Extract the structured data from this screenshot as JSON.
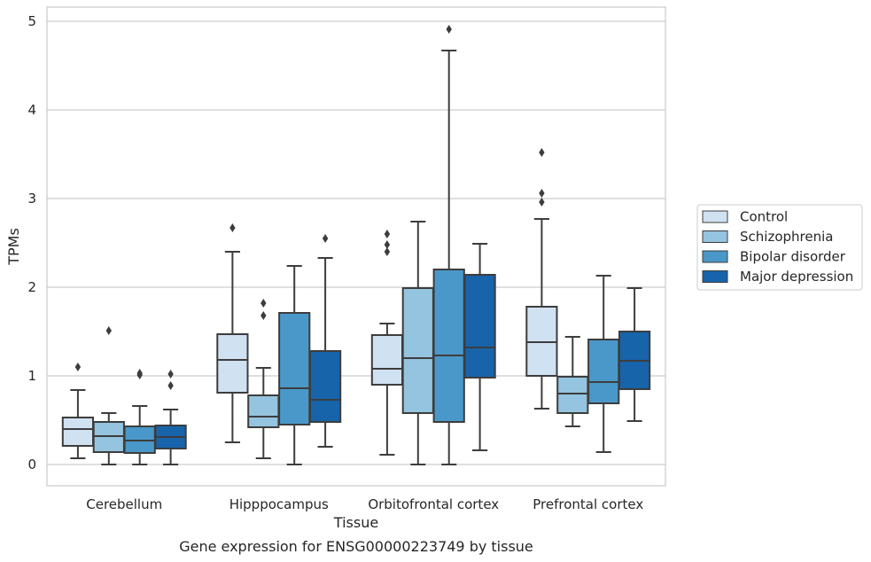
{
  "chart_data": {
    "type": "box",
    "title": "",
    "caption": "Gene expression for ENSG00000223749 by tissue",
    "xlabel": "Tissue",
    "ylabel": "TPMs",
    "ylim": [
      -0.24,
      5.16
    ],
    "yticks": [
      0,
      1,
      2,
      3,
      4,
      5
    ],
    "grid": true,
    "legend_position": "right",
    "categories": [
      "Cerebellum",
      "Hipppocampus",
      "Orbitofrontal cortex",
      "Prefrontal cortex"
    ],
    "series": [
      {
        "name": "Control",
        "color": "#d0e1f2",
        "boxes": [
          {
            "whislo": 0.07,
            "q1": 0.21,
            "med": 0.4,
            "q3": 0.53,
            "whishi": 0.84,
            "fliers": [
              1.1
            ]
          },
          {
            "whislo": 0.25,
            "q1": 0.81,
            "med": 1.18,
            "q3": 1.47,
            "whishi": 2.4,
            "fliers": [
              2.67
            ]
          },
          {
            "whislo": 0.11,
            "q1": 0.9,
            "med": 1.08,
            "q3": 1.46,
            "whishi": 1.59,
            "fliers": [
              2.4,
              2.48,
              2.6
            ]
          },
          {
            "whislo": 0.63,
            "q1": 1.0,
            "med": 1.38,
            "q3": 1.78,
            "whishi": 2.77,
            "fliers": [
              2.96,
              3.06,
              3.52
            ]
          }
        ]
      },
      {
        "name": "Schizophrenia",
        "color": "#94c4df",
        "boxes": [
          {
            "whislo": 0.0,
            "q1": 0.14,
            "med": 0.32,
            "q3": 0.48,
            "whishi": 0.58,
            "fliers": [
              1.51
            ]
          },
          {
            "whislo": 0.07,
            "q1": 0.42,
            "med": 0.54,
            "q3": 0.78,
            "whishi": 1.09,
            "fliers": [
              1.68,
              1.82
            ]
          },
          {
            "whislo": 0.0,
            "q1": 0.58,
            "med": 1.2,
            "q3": 1.99,
            "whishi": 2.74,
            "fliers": []
          },
          {
            "whislo": 0.43,
            "q1": 0.58,
            "med": 0.8,
            "q3": 0.99,
            "whishi": 1.44,
            "fliers": []
          }
        ]
      },
      {
        "name": "Bipolar disorder",
        "color": "#4a98c9",
        "boxes": [
          {
            "whislo": 0.0,
            "q1": 0.13,
            "med": 0.27,
            "q3": 0.43,
            "whishi": 0.66,
            "fliers": [
              1.01,
              1.03
            ]
          },
          {
            "whislo": 0.0,
            "q1": 0.45,
            "med": 0.86,
            "q3": 1.71,
            "whishi": 2.24,
            "fliers": []
          },
          {
            "whislo": 0.0,
            "q1": 0.48,
            "med": 1.23,
            "q3": 2.2,
            "whishi": 4.67,
            "fliers": [
              4.91
            ]
          },
          {
            "whislo": 0.14,
            "q1": 0.69,
            "med": 0.93,
            "q3": 1.41,
            "whishi": 2.13,
            "fliers": []
          }
        ]
      },
      {
        "name": "Major depression",
        "color": "#1764ab",
        "boxes": [
          {
            "whislo": 0.0,
            "q1": 0.18,
            "med": 0.31,
            "q3": 0.44,
            "whishi": 0.62,
            "fliers": [
              0.89,
              1.02
            ]
          },
          {
            "whislo": 0.2,
            "q1": 0.48,
            "med": 0.73,
            "q3": 1.28,
            "whishi": 2.33,
            "fliers": [
              2.55
            ]
          },
          {
            "whislo": 0.16,
            "q1": 0.98,
            "med": 1.32,
            "q3": 2.14,
            "whishi": 2.49,
            "fliers": []
          },
          {
            "whislo": 0.49,
            "q1": 0.85,
            "med": 1.17,
            "q3": 1.5,
            "whishi": 1.99,
            "fliers": []
          }
        ]
      }
    ]
  }
}
